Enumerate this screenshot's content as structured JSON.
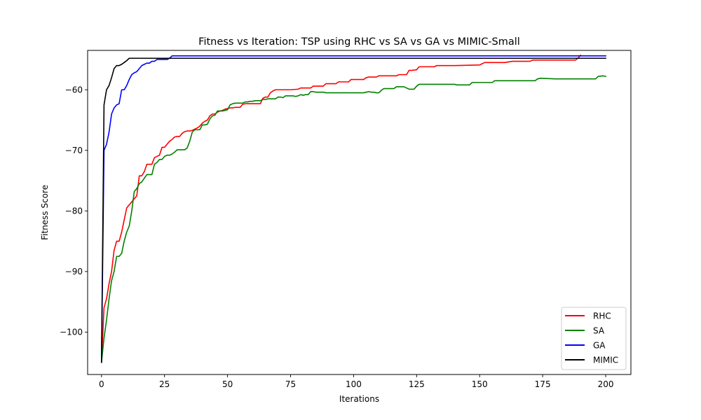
{
  "chart_data": {
    "type": "line",
    "title": "Fitness vs Iteration: TSP using RHC vs SA vs GA vs MIMIC-Small",
    "xlabel": "Iterations",
    "ylabel": "Fitness Score",
    "xlim": [
      -5.5,
      210
    ],
    "ylim": [
      -107,
      -53.5
    ],
    "xticks": [
      0,
      25,
      50,
      75,
      100,
      125,
      150,
      175,
      200
    ],
    "yticks": [
      -100,
      -90,
      -80,
      -70,
      -60
    ],
    "grid": false,
    "legend_position": "lower-right",
    "series": [
      {
        "name": "RHC",
        "color": "#ff0000",
        "points": [
          [
            0,
            -105
          ],
          [
            1,
            -96
          ],
          [
            2,
            -94.5
          ],
          [
            3,
            -92
          ],
          [
            4,
            -90
          ],
          [
            5,
            -86.5
          ],
          [
            6,
            -85
          ],
          [
            7,
            -85
          ],
          [
            8,
            -83.5
          ],
          [
            9,
            -81.5
          ],
          [
            10,
            -79.5
          ],
          [
            11,
            -79
          ],
          [
            12,
            -78.5
          ],
          [
            13,
            -78
          ],
          [
            14,
            -77.5
          ],
          [
            15,
            -74.2
          ],
          [
            16,
            -74.2
          ],
          [
            17,
            -73.5
          ],
          [
            18,
            -72.3
          ],
          [
            19,
            -72.3
          ],
          [
            20,
            -72.3
          ],
          [
            21,
            -71.2
          ],
          [
            22,
            -71
          ],
          [
            23,
            -70.8
          ],
          [
            24,
            -69.5
          ],
          [
            25,
            -69.5
          ],
          [
            26,
            -69
          ],
          [
            27,
            -68.5
          ],
          [
            28,
            -68.2
          ],
          [
            29,
            -67.8
          ],
          [
            30,
            -67.7
          ],
          [
            31,
            -67.7
          ],
          [
            32,
            -67.2
          ],
          [
            33,
            -66.9
          ],
          [
            34,
            -66.8
          ],
          [
            35,
            -66.8
          ],
          [
            36,
            -66.7
          ],
          [
            37,
            -66.5
          ],
          [
            38,
            -66.3
          ],
          [
            39,
            -66
          ],
          [
            40,
            -65.5
          ],
          [
            41,
            -65.2
          ],
          [
            42,
            -65
          ],
          [
            43,
            -64.3
          ],
          [
            44,
            -64
          ],
          [
            45,
            -64
          ],
          [
            46,
            -63.7
          ],
          [
            47,
            -63.5
          ],
          [
            48,
            -63.4
          ],
          [
            49,
            -63.2
          ],
          [
            50,
            -63.1
          ],
          [
            51,
            -63
          ],
          [
            52,
            -63
          ],
          [
            53,
            -62.9
          ],
          [
            55,
            -62.9
          ],
          [
            56,
            -62.4
          ],
          [
            57,
            -62.3
          ],
          [
            58,
            -62.3
          ],
          [
            60,
            -62.3
          ],
          [
            63,
            -62.3
          ],
          [
            64,
            -61.4
          ],
          [
            65,
            -61.2
          ],
          [
            66,
            -61.2
          ],
          [
            67,
            -60.5
          ],
          [
            68,
            -60.2
          ],
          [
            69,
            -60
          ],
          [
            70,
            -60
          ],
          [
            75,
            -60
          ],
          [
            78,
            -59.9
          ],
          [
            79,
            -59.7
          ],
          [
            80,
            -59.7
          ],
          [
            83,
            -59.7
          ],
          [
            84,
            -59.4
          ],
          [
            85,
            -59.4
          ],
          [
            88,
            -59.4
          ],
          [
            89,
            -59
          ],
          [
            90,
            -59
          ],
          [
            93,
            -59
          ],
          [
            94,
            -58.7
          ],
          [
            95,
            -58.7
          ],
          [
            98,
            -58.7
          ],
          [
            99,
            -58.3
          ],
          [
            100,
            -58.3
          ],
          [
            104,
            -58.3
          ],
          [
            105,
            -58
          ],
          [
            106,
            -57.9
          ],
          [
            109,
            -57.9
          ],
          [
            110,
            -57.7
          ],
          [
            111,
            -57.7
          ],
          [
            117,
            -57.7
          ],
          [
            118,
            -57.5
          ],
          [
            119,
            -57.5
          ],
          [
            121,
            -57.5
          ],
          [
            122,
            -56.8
          ],
          [
            123,
            -56.8
          ],
          [
            125,
            -56.7
          ],
          [
            126,
            -56.2
          ],
          [
            127,
            -56.2
          ],
          [
            132,
            -56.2
          ],
          [
            133,
            -56
          ],
          [
            135,
            -56
          ],
          [
            140,
            -56
          ],
          [
            150,
            -55.9
          ],
          [
            152,
            -55.5
          ],
          [
            160,
            -55.5
          ],
          [
            163,
            -55.3
          ],
          [
            170,
            -55.3
          ],
          [
            171,
            -55.1
          ],
          [
            185,
            -55.1
          ],
          [
            188,
            -55.1
          ],
          [
            189,
            -54.8
          ],
          [
            190,
            -54.3
          ]
        ]
      },
      {
        "name": "SA",
        "color": "#008000",
        "points": [
          [
            0,
            -105
          ],
          [
            1,
            -101
          ],
          [
            2,
            -98
          ],
          [
            3,
            -94.5
          ],
          [
            4,
            -91.5
          ],
          [
            5,
            -90
          ],
          [
            6,
            -87.5
          ],
          [
            7,
            -87.5
          ],
          [
            8,
            -87
          ],
          [
            9,
            -85
          ],
          [
            10,
            -83.5
          ],
          [
            11,
            -82.5
          ],
          [
            12,
            -80
          ],
          [
            13,
            -76.8
          ],
          [
            14,
            -76.3
          ],
          [
            15,
            -75.5
          ],
          [
            16,
            -75.2
          ],
          [
            17,
            -74.6
          ],
          [
            18,
            -74
          ],
          [
            19,
            -74
          ],
          [
            20,
            -74
          ],
          [
            21,
            -72.3
          ],
          [
            22,
            -72
          ],
          [
            23,
            -71.5
          ],
          [
            24,
            -71.5
          ],
          [
            25,
            -71
          ],
          [
            26,
            -70.8
          ],
          [
            27,
            -70.8
          ],
          [
            28,
            -70.6
          ],
          [
            29,
            -70.3
          ],
          [
            30,
            -69.9
          ],
          [
            31,
            -69.9
          ],
          [
            32,
            -69.9
          ],
          [
            33,
            -69.9
          ],
          [
            34,
            -69.6
          ],
          [
            35,
            -68.5
          ],
          [
            36,
            -67
          ],
          [
            37,
            -66.6
          ],
          [
            38,
            -66.6
          ],
          [
            39,
            -66.6
          ],
          [
            40,
            -65.8
          ],
          [
            41,
            -65.8
          ],
          [
            42,
            -65.7
          ],
          [
            43,
            -64.8
          ],
          [
            44,
            -64.3
          ],
          [
            45,
            -64.2
          ],
          [
            46,
            -63.5
          ],
          [
            47,
            -63.5
          ],
          [
            48,
            -63.5
          ],
          [
            49,
            -63.4
          ],
          [
            50,
            -63.3
          ],
          [
            51,
            -62.5
          ],
          [
            52,
            -62.3
          ],
          [
            53,
            -62.2
          ],
          [
            54,
            -62.2
          ],
          [
            55,
            -62.2
          ],
          [
            56,
            -62.2
          ],
          [
            57,
            -62
          ],
          [
            58,
            -62
          ],
          [
            59,
            -61.9
          ],
          [
            60,
            -61.9
          ],
          [
            61,
            -61.8
          ],
          [
            62,
            -61.8
          ],
          [
            63,
            -61.8
          ],
          [
            64,
            -61.6
          ],
          [
            65,
            -61.6
          ],
          [
            66,
            -61.5
          ],
          [
            67,
            -61.5
          ],
          [
            68,
            -61.5
          ],
          [
            69,
            -61.5
          ],
          [
            70,
            -61.2
          ],
          [
            71,
            -61.2
          ],
          [
            72,
            -61.3
          ],
          [
            73,
            -61
          ],
          [
            74,
            -61
          ],
          [
            75,
            -61
          ],
          [
            76,
            -61
          ],
          [
            77,
            -61.1
          ],
          [
            78,
            -61
          ],
          [
            79,
            -60.8
          ],
          [
            80,
            -60.9
          ],
          [
            81,
            -60.8
          ],
          [
            82,
            -60.8
          ],
          [
            83,
            -60.3
          ],
          [
            84,
            -60.3
          ],
          [
            85,
            -60.4
          ],
          [
            86,
            -60.4
          ],
          [
            87,
            -60.4
          ],
          [
            88,
            -60.4
          ],
          [
            89,
            -60.5
          ],
          [
            90,
            -60.5
          ],
          [
            95,
            -60.5
          ],
          [
            100,
            -60.5
          ],
          [
            104,
            -60.5
          ],
          [
            105,
            -60.4
          ],
          [
            106,
            -60.3
          ],
          [
            107,
            -60.4
          ],
          [
            108,
            -60.4
          ],
          [
            109,
            -60.5
          ],
          [
            110,
            -60.5
          ],
          [
            111,
            -60.1
          ],
          [
            112,
            -59.8
          ],
          [
            115,
            -59.8
          ],
          [
            116,
            -59.8
          ],
          [
            117,
            -59.5
          ],
          [
            118,
            -59.5
          ],
          [
            120,
            -59.5
          ],
          [
            121,
            -59.7
          ],
          [
            122,
            -59.9
          ],
          [
            123,
            -59.9
          ],
          [
            124,
            -59.9
          ],
          [
            125,
            -59.4
          ],
          [
            126,
            -59.1
          ],
          [
            127,
            -59.1
          ],
          [
            135,
            -59.1
          ],
          [
            140,
            -59.1
          ],
          [
            141,
            -59.2
          ],
          [
            146,
            -59.2
          ],
          [
            147,
            -58.8
          ],
          [
            155,
            -58.8
          ],
          [
            156,
            -58.5
          ],
          [
            165,
            -58.5
          ],
          [
            170,
            -58.5
          ],
          [
            172,
            -58.5
          ],
          [
            173,
            -58.2
          ],
          [
            174,
            -58.1
          ],
          [
            180,
            -58.2
          ],
          [
            182,
            -58.2
          ],
          [
            195,
            -58.2
          ],
          [
            196,
            -58.2
          ],
          [
            197,
            -57.8
          ],
          [
            199,
            -57.7
          ],
          [
            200,
            -57.8
          ]
        ]
      },
      {
        "name": "GA",
        "color": "#0000ff",
        "points": [
          [
            0,
            -105
          ],
          [
            1,
            -70
          ],
          [
            2,
            -69
          ],
          [
            3,
            -67
          ],
          [
            4,
            -64
          ],
          [
            5,
            -63
          ],
          [
            6,
            -62.5
          ],
          [
            7,
            -62.3
          ],
          [
            8,
            -60
          ],
          [
            9,
            -60
          ],
          [
            10,
            -59.3
          ],
          [
            11,
            -58.3
          ],
          [
            12,
            -57.5
          ],
          [
            13,
            -57.2
          ],
          [
            14,
            -57
          ],
          [
            15,
            -56.5
          ],
          [
            16,
            -56
          ],
          [
            17,
            -55.8
          ],
          [
            18,
            -55.6
          ],
          [
            19,
            -55.6
          ],
          [
            20,
            -55.3
          ],
          [
            21,
            -55.3
          ],
          [
            22,
            -55
          ],
          [
            23,
            -55
          ],
          [
            24,
            -55
          ],
          [
            25,
            -55
          ],
          [
            26,
            -55
          ],
          [
            27,
            -54.8
          ],
          [
            28,
            -54.4
          ],
          [
            29,
            -54.4
          ],
          [
            30,
            -54.4
          ],
          [
            50,
            -54.4
          ],
          [
            100,
            -54.4
          ],
          [
            150,
            -54.4
          ],
          [
            200,
            -54.4
          ]
        ]
      },
      {
        "name": "MIMIC",
        "color": "#000000",
        "points": [
          [
            0,
            -105
          ],
          [
            1,
            -62.5
          ],
          [
            2,
            -60
          ],
          [
            3,
            -59.3
          ],
          [
            4,
            -58
          ],
          [
            5,
            -56.5
          ],
          [
            6,
            -56
          ],
          [
            7,
            -56
          ],
          [
            8,
            -55.8
          ],
          [
            9,
            -55.5
          ],
          [
            10,
            -55.2
          ],
          [
            11,
            -54.8
          ],
          [
            12,
            -54.8
          ],
          [
            13,
            -54.8
          ],
          [
            14,
            -54.8
          ],
          [
            15,
            -54.8
          ],
          [
            20,
            -54.8
          ],
          [
            50,
            -54.8
          ],
          [
            100,
            -54.8
          ],
          [
            150,
            -54.8
          ],
          [
            200,
            -54.8
          ]
        ]
      }
    ]
  }
}
